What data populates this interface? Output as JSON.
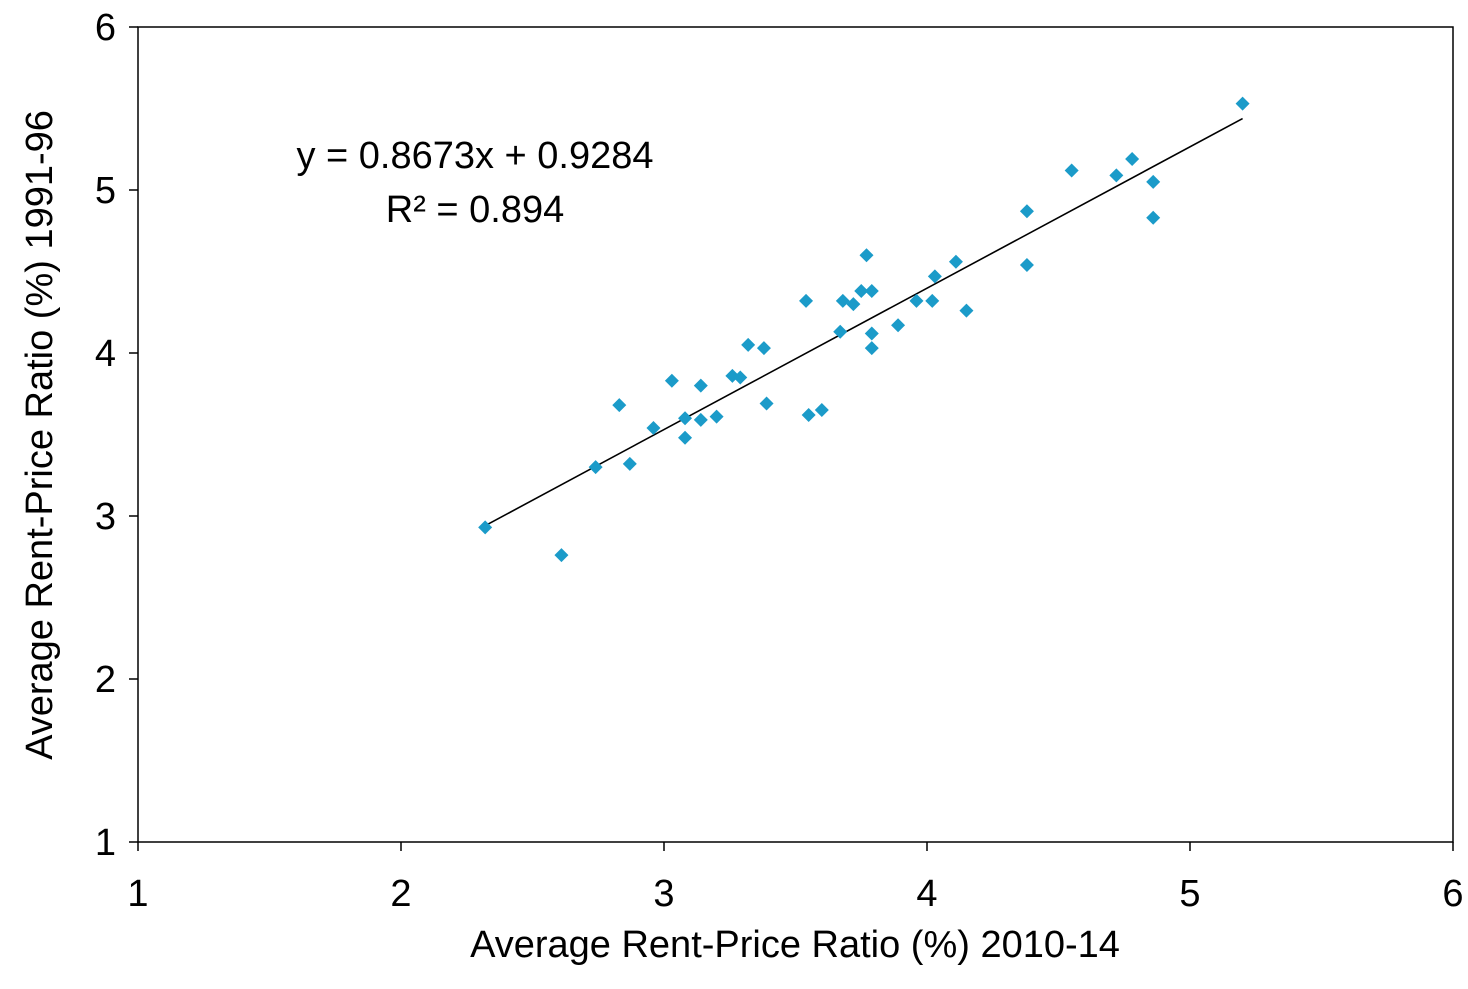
{
  "chart_data": {
    "type": "scatter",
    "xlabel": "Average Rent-Price Ratio (%) 2010-14",
    "ylabel": "Average Rent-Price Ratio (%) 1991-96",
    "xlim": [
      1,
      6
    ],
    "ylim": [
      1,
      6
    ],
    "xticks": [
      "1",
      "2",
      "3",
      "4",
      "5",
      "6"
    ],
    "yticks": [
      "1",
      "2",
      "3",
      "4",
      "5",
      "6"
    ],
    "grid": false,
    "legend": "none",
    "marker": "diamond",
    "marker_color": "#1b9bc9",
    "series": [
      {
        "x": [
          2.32,
          2.61,
          2.74,
          2.83,
          2.87,
          2.96,
          3.03,
          3.08,
          3.08,
          3.14,
          3.14,
          3.2,
          3.26,
          3.29,
          3.32,
          3.38,
          3.39,
          3.54,
          3.55,
          3.6,
          3.67,
          3.68,
          3.72,
          3.75,
          3.77,
          3.79,
          3.79,
          3.79,
          3.89,
          3.96,
          4.02,
          4.03,
          4.11,
          4.15,
          4.38,
          4.38,
          4.55,
          4.72,
          4.78,
          4.86,
          4.86,
          5.2
        ],
        "y": [
          2.93,
          2.76,
          3.3,
          3.68,
          3.32,
          3.54,
          3.83,
          3.6,
          3.48,
          3.8,
          3.59,
          3.61,
          3.86,
          3.85,
          4.05,
          4.03,
          3.69,
          4.32,
          3.62,
          3.65,
          4.13,
          4.32,
          4.3,
          4.38,
          4.6,
          4.38,
          4.12,
          4.03,
          4.17,
          4.32,
          4.32,
          4.47,
          4.56,
          4.26,
          4.54,
          4.87,
          5.12,
          5.09,
          5.19,
          5.05,
          4.83,
          5.53
        ]
      }
    ],
    "trendline": {
      "slope": 0.8673,
      "intercept": 0.9284,
      "x_range": [
        2.32,
        5.2
      ],
      "color": "#000000",
      "equation_text": "y = 0.8673x + 0.9284",
      "r2_text": "R² = 0.894"
    }
  }
}
